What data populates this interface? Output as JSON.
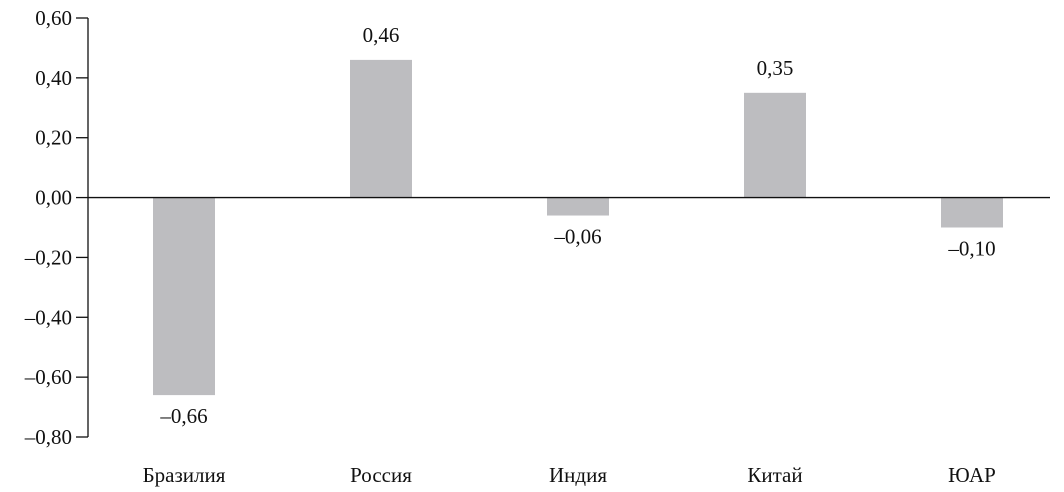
{
  "chart_data": {
    "type": "bar",
    "categories": [
      "Бразилия",
      "Россия",
      "Индия",
      "Китай",
      "ЮАР"
    ],
    "values": [
      -0.66,
      0.46,
      -0.06,
      0.35,
      -0.1
    ],
    "value_labels": [
      "–0,66",
      "0,46",
      "–0,06",
      "0,35",
      "–0,10"
    ],
    "y_ticks": [
      0.6,
      0.4,
      0.2,
      0.0,
      -0.2,
      -0.4,
      -0.6,
      -0.8
    ],
    "y_tick_labels": [
      "0,60",
      "0,40",
      "0,20",
      "0,00",
      "–0,20",
      "–0,40",
      "–0,60",
      "–0,80"
    ],
    "ylim": [
      -0.8,
      0.6
    ],
    "bar_color": "#bdbdc0",
    "axis_color": "#111111",
    "grid": false,
    "legend": "none"
  }
}
